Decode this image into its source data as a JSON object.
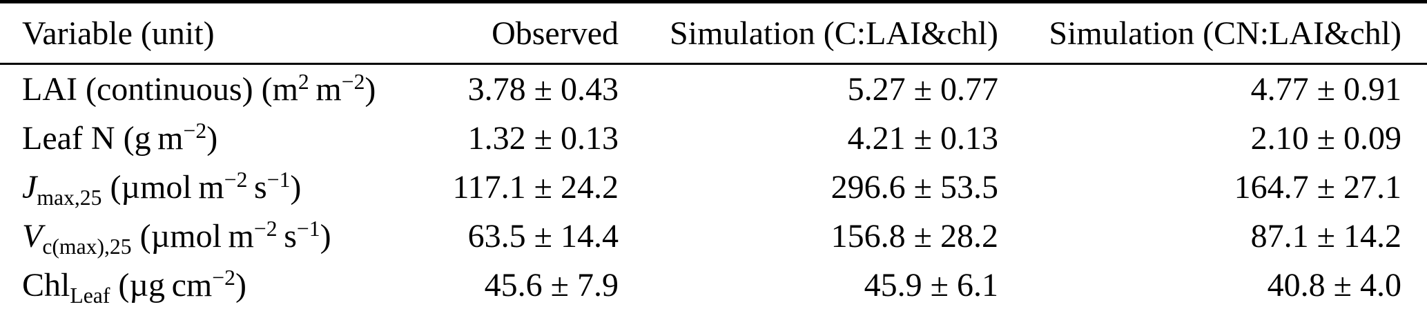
{
  "colors": {
    "text": "#000000",
    "background": "#ffffff",
    "rule": "#000000"
  },
  "table": {
    "columns": [
      "Variable (unit)",
      "Observed",
      "Simulation (C:LAI&chl)",
      "Simulation (CN:LAI&chl)"
    ],
    "rows": [
      {
        "variable_html": "LAI (continuous) (m<sup>2</sup> m<sup>−2</sup>)",
        "observed": "3.78 ± 0.43",
        "sim_c_lai_chl": "5.27 ± 0.77",
        "sim_cn_lai_chl": "4.77 ± 0.91"
      },
      {
        "variable_html": "Leaf N (g m<sup>−2</sup>)",
        "observed": "1.32 ± 0.13",
        "sim_c_lai_chl": "4.21 ± 0.13",
        "sim_cn_lai_chl": "2.10 ± 0.09"
      },
      {
        "variable_html": "<i>J</i><sub>max,25</sub> (µmol m<sup>−2</sup> s<sup>−1</sup>)",
        "observed": "117.1 ± 24.2",
        "sim_c_lai_chl": "296.6 ± 53.5",
        "sim_cn_lai_chl": "164.7 ± 27.1"
      },
      {
        "variable_html": "<i>V</i><sub>c(max),25</sub> (µmol m<sup>−2</sup> s<sup>−1</sup>)",
        "observed": "63.5 ± 14.4",
        "sim_c_lai_chl": "156.8 ± 28.2",
        "sim_cn_lai_chl": "87.1 ± 14.2"
      },
      {
        "variable_html": "Chl<sub>Leaf</sub> (µg cm<sup>−2</sup>)",
        "observed": "45.6 ± 7.9",
        "sim_c_lai_chl": "45.9 ± 6.1",
        "sim_cn_lai_chl": "40.8 ± 4.0"
      }
    ]
  }
}
